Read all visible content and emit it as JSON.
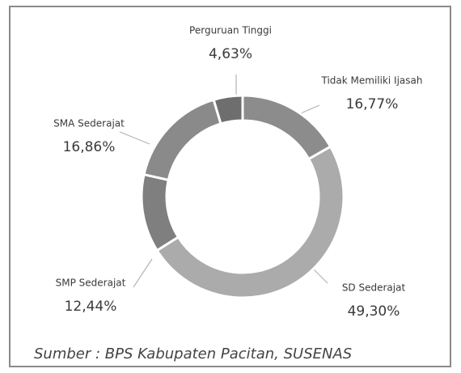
{
  "chart_data": {
    "type": "donut",
    "categories": [
      "Tidak Memiliki Ijasah",
      "SD Sederajat",
      "SMP Sederajat",
      "SMA Sederajat",
      "Perguruan Tinggi"
    ],
    "values": [
      16.77,
      49.3,
      12.44,
      16.86,
      4.63
    ],
    "value_labels": [
      "16,77%",
      "49,30%",
      "12,44%",
      "16,86%",
      "4,63%"
    ],
    "colors": [
      "#8c8c8c",
      "#ababab",
      "#7f7f7f",
      "#8a8a8a",
      "#6e6e6e"
    ],
    "source": "Sumber : BPS Kabupaten Pacitan, SUSENAS"
  }
}
